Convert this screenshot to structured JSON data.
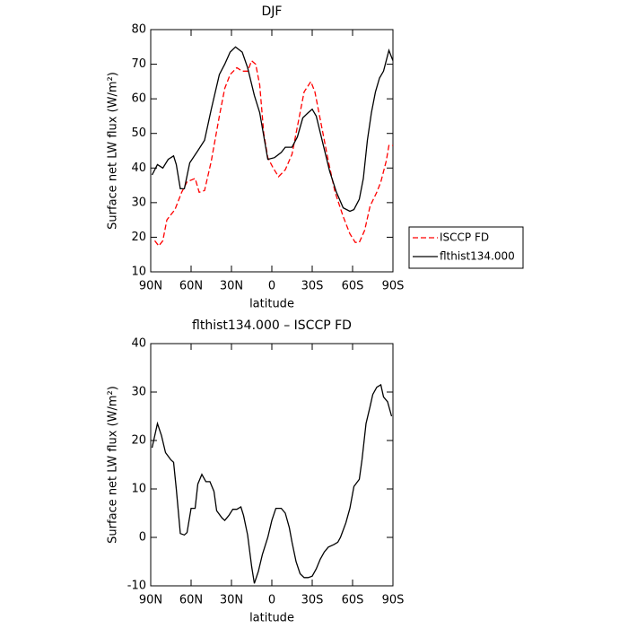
{
  "chart_data": [
    {
      "type": "line",
      "title": "DJF",
      "xlabel": "latitude",
      "ylabel": "Surface net LW flux (W/m²)",
      "xlim": [
        90,
        -90
      ],
      "xticks": [
        {
          "value": 90,
          "label": "90N"
        },
        {
          "value": 60,
          "label": "60N"
        },
        {
          "value": 30,
          "label": "30N"
        },
        0,
        {
          "value": -30,
          "label": "30S"
        },
        {
          "value": -60,
          "label": "60S"
        },
        {
          "value": -90,
          "label": "90S"
        }
      ],
      "ylim": [
        10,
        80
      ],
      "yticks": [
        10,
        20,
        30,
        40,
        50,
        60,
        70,
        80
      ],
      "legend": "right",
      "series": [
        {
          "name": "ISCCP FD",
          "color": "#ff0000",
          "line_style": "dashed",
          "x": [
            87,
            84,
            81,
            78,
            72,
            67,
            63,
            57,
            54,
            50,
            45,
            39,
            35,
            31,
            26,
            22,
            18,
            15,
            12,
            9,
            6,
            3,
            -1,
            -5,
            -10,
            -15,
            -20,
            -24,
            -29,
            -32,
            -37,
            -42,
            -47,
            -53,
            -58,
            -62,
            -65,
            -69,
            -73,
            -78,
            -81,
            -85,
            -87,
            -90
          ],
          "values": [
            19,
            17.5,
            19,
            25,
            28,
            33,
            36,
            37,
            33,
            33.5,
            42,
            55,
            63,
            67,
            69,
            68,
            68,
            71,
            70,
            64,
            50,
            43,
            40,
            37.5,
            39.5,
            44,
            54,
            62,
            65,
            62,
            52,
            42,
            33,
            26,
            21,
            18.5,
            18.5,
            22,
            29,
            33,
            36,
            42,
            46.5,
            46.5
          ]
        },
        {
          "name": "flthist134.000",
          "color": "#000000",
          "line_style": "solid",
          "x": [
            89,
            85,
            81,
            77,
            73,
            71,
            68,
            65,
            61,
            55,
            50,
            45,
            39,
            35,
            31,
            27,
            22,
            18,
            13,
            9,
            5,
            3,
            -2,
            -7,
            -10,
            -15,
            -19,
            -23,
            -27,
            -30,
            -33,
            -38,
            -43,
            -48,
            -53,
            -58,
            -61,
            -65,
            -68,
            -71,
            -74,
            -77,
            -80,
            -83,
            -85,
            -87,
            -90
          ],
          "values": [
            38,
            41,
            40,
            42.5,
            43.5,
            41,
            34,
            34,
            41.5,
            45,
            48,
            57,
            67,
            70,
            73.5,
            75,
            73.5,
            69,
            61,
            56,
            47,
            42.5,
            43,
            44.5,
            46,
            46,
            49,
            54.5,
            56,
            57,
            55,
            47,
            39,
            33,
            28.5,
            27.5,
            28,
            31,
            37,
            48,
            56,
            62,
            66,
            68,
            71,
            74,
            71
          ]
        }
      ]
    },
    {
      "type": "line",
      "title": "flthist134.000 – ISCCP FD",
      "xlabel": "latitude",
      "ylabel": "Surface net LW flux (W/m²)",
      "xlim": [
        90,
        -90
      ],
      "xticks": [
        {
          "value": 90,
          "label": "90N"
        },
        {
          "value": 60,
          "label": "60N"
        },
        {
          "value": 30,
          "label": "30N"
        },
        0,
        {
          "value": -30,
          "label": "30S"
        },
        {
          "value": -60,
          "label": "60S"
        },
        {
          "value": -90,
          "label": "90S"
        }
      ],
      "ylim": [
        -10,
        40
      ],
      "yticks": [
        -10,
        0,
        10,
        20,
        30,
        40
      ],
      "series": [
        {
          "color": "#000000",
          "line_style": "solid",
          "x": [
            89,
            85,
            82,
            79,
            75,
            73,
            71,
            68,
            65,
            63,
            60,
            57,
            55,
            52,
            49,
            46,
            43,
            41,
            37,
            35,
            32,
            29,
            26,
            23,
            21,
            18,
            15,
            13,
            10,
            7,
            3,
            0,
            -3,
            -7,
            -10,
            -13,
            -15,
            -18,
            -21,
            -24,
            -27,
            -30,
            -33,
            -36,
            -39,
            -42,
            -46,
            -49,
            -51,
            -55,
            -58,
            -61,
            -65,
            -67,
            -70,
            -73,
            -75,
            -78,
            -81,
            -83,
            -86,
            -89
          ],
          "values": [
            18.5,
            23.5,
            21,
            17.5,
            16,
            15.5,
            10,
            0.8,
            0.5,
            1,
            6,
            6,
            11,
            13,
            11.5,
            11.5,
            9.5,
            5.5,
            4,
            3.5,
            4.5,
            5.8,
            5.8,
            6.3,
            4.5,
            0.5,
            -6,
            -9.5,
            -7,
            -3.5,
            0,
            3.5,
            6,
            6,
            5,
            2,
            -1,
            -5,
            -7.5,
            -8.3,
            -8.3,
            -8,
            -6.5,
            -4.5,
            -3,
            -2,
            -1.5,
            -1,
            0,
            3,
            6,
            10.5,
            12,
            16,
            23.5,
            27,
            29.5,
            31,
            31.5,
            29,
            28,
            25
          ]
        }
      ]
    }
  ]
}
